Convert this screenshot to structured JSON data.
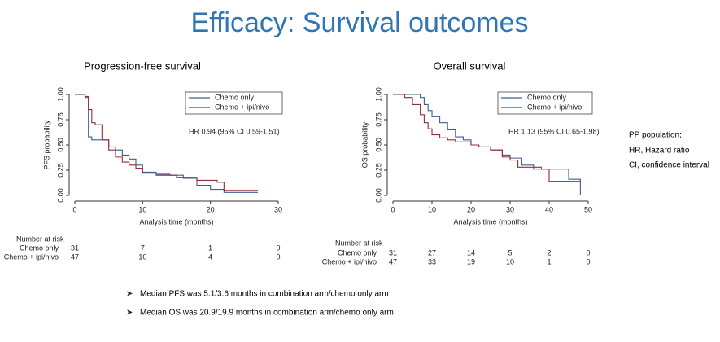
{
  "slide_title": "Efficacy: Survival outcomes",
  "notes": [
    "PP population;",
    "HR, Hazard ratio",
    "CI, confidence interval"
  ],
  "bullets": [
    "Median PFS was 5.1/3.6 months in combination arm/chemo only arm",
    "Median OS was 20.9/19.9 months in combination arm/chemo only arm"
  ],
  "chart_data": [
    {
      "type": "step",
      "title": "Progression-free survival",
      "x_label": "Analysis time (months)",
      "y_label": "PFS probability",
      "annotation": "HR 0.94 (95% CI 0.59-1.51)",
      "xlim": [
        0,
        30
      ],
      "xticks": [
        0,
        10,
        20,
        30
      ],
      "ylim": [
        0,
        1
      ],
      "yticks": [
        {
          "value": 0,
          "label": "0.00"
        },
        {
          "value": 0.25,
          "label": "0.25"
        },
        {
          "value": 0.5,
          "label": "0.50"
        },
        {
          "value": 0.75,
          "label": "0.75"
        },
        {
          "value": 1,
          "label": "1.00"
        }
      ],
      "series": [
        {
          "name": "Chemo only",
          "color": "#3d5e94",
          "x": [
            0,
            1.5,
            2,
            2.5,
            3,
            5,
            6,
            7,
            8,
            9,
            10,
            12,
            14,
            16,
            18,
            20,
            22,
            27
          ],
          "values": [
            1,
            0.97,
            0.58,
            0.55,
            0.55,
            0.48,
            0.45,
            0.4,
            0.36,
            0.3,
            0.23,
            0.21,
            0.2,
            0.17,
            0.1,
            0.06,
            0.03,
            0.03
          ]
        },
        {
          "name": "Chemo + ipi/nivo",
          "color": "#952c3c",
          "x": [
            0,
            1.5,
            2,
            2.5,
            3,
            4,
            5,
            6,
            7,
            8,
            9,
            10,
            12,
            15,
            18,
            21,
            22,
            27
          ],
          "values": [
            1,
            0.98,
            0.85,
            0.72,
            0.7,
            0.55,
            0.45,
            0.38,
            0.33,
            0.3,
            0.27,
            0.22,
            0.2,
            0.18,
            0.15,
            0.13,
            0.05,
            0.05
          ]
        }
      ],
      "risk_table": {
        "title": "Number at risk",
        "rows": [
          {
            "name": "Chemo only",
            "values": [
              31,
              7,
              1,
              0
            ]
          },
          {
            "name": "Chemo + ipi/nivo",
            "values": [
              47,
              10,
              4,
              0
            ]
          }
        ]
      }
    },
    {
      "type": "step",
      "title": "Overall survival",
      "x_label": "Analysis time (months)",
      "y_label": "OS probability",
      "annotation": "HR 1.13 (95% CI 0.65-1.98)",
      "xlim": [
        0,
        50
      ],
      "xticks": [
        0,
        10,
        20,
        30,
        40,
        50
      ],
      "ylim": [
        0,
        1
      ],
      "yticks": [
        {
          "value": 0,
          "label": "0.00"
        },
        {
          "value": 0.25,
          "label": "0.25"
        },
        {
          "value": 0.5,
          "label": "0.50"
        },
        {
          "value": 0.75,
          "label": "0.75"
        },
        {
          "value": 1,
          "label": "1.00"
        }
      ],
      "series": [
        {
          "name": "Chemo only",
          "color": "#3d5e94",
          "x": [
            0,
            5,
            7,
            8,
            9,
            10,
            12,
            14,
            16,
            18,
            20,
            22,
            25,
            28,
            30,
            33,
            36,
            38,
            45,
            48
          ],
          "values": [
            1,
            1,
            0.97,
            0.9,
            0.84,
            0.78,
            0.72,
            0.65,
            0.58,
            0.55,
            0.5,
            0.48,
            0.45,
            0.4,
            0.37,
            0.3,
            0.26,
            0.26,
            0.16,
            0
          ]
        },
        {
          "name": "Chemo + ipi/nivo",
          "color": "#952c3c",
          "x": [
            0,
            3,
            5,
            7,
            8,
            9,
            10,
            12,
            14,
            16,
            20,
            22,
            25,
            28,
            30,
            32,
            38,
            40,
            48
          ],
          "values": [
            1,
            0.97,
            0.9,
            0.8,
            0.72,
            0.66,
            0.6,
            0.57,
            0.55,
            0.53,
            0.5,
            0.48,
            0.45,
            0.38,
            0.35,
            0.28,
            0.26,
            0.14,
            0.14
          ]
        }
      ],
      "risk_table": {
        "title": "Number at risk",
        "rows": [
          {
            "name": "Chemo only",
            "values": [
              31,
              27,
              14,
              5,
              2,
              0
            ]
          },
          {
            "name": "Chemo + ipi/nivo",
            "values": [
              47,
              33,
              19,
              10,
              1,
              0
            ]
          }
        ]
      }
    }
  ]
}
